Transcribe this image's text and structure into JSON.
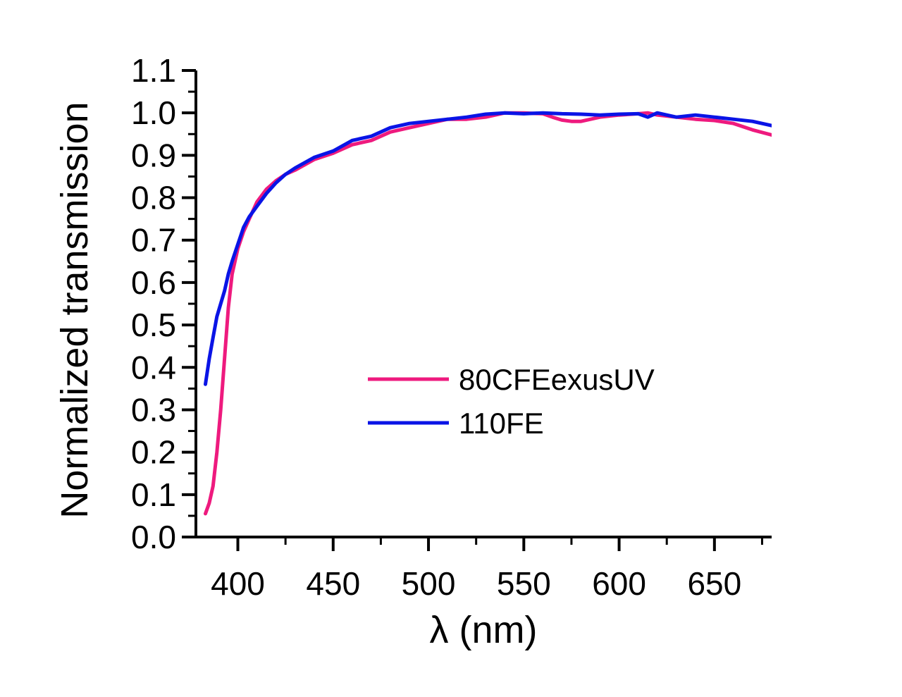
{
  "chart_data": {
    "type": "line",
    "title": "",
    "xlabel": "λ (nm)",
    "ylabel": "Normalized transmission",
    "xlim": [
      378,
      680
    ],
    "ylim": [
      0.0,
      1.1
    ],
    "x_ticks": [
      400,
      450,
      500,
      550,
      600,
      650
    ],
    "x_tick_labels": [
      "400",
      "450",
      "500",
      "550",
      "600",
      "650"
    ],
    "x_minor_ticks": [
      425,
      475,
      525,
      575,
      625,
      675
    ],
    "y_ticks": [
      0.0,
      0.1,
      0.2,
      0.3,
      0.4,
      0.5,
      0.6,
      0.7,
      0.8,
      0.9,
      1.0,
      1.1
    ],
    "y_tick_labels": [
      "0.0",
      "0.1",
      "0.2",
      "0.3",
      "0.4",
      "0.5",
      "0.6",
      "0.7",
      "0.8",
      "0.9",
      "1.0",
      "1.1"
    ],
    "y_minor_ticks": [
      0.05,
      0.15,
      0.25,
      0.35,
      0.45,
      0.55,
      0.65,
      0.75,
      0.85,
      0.95,
      1.05
    ],
    "grid": false,
    "legend_position": "center-right",
    "series": [
      {
        "name": "80CFEexusUV",
        "color": "#ee1a7e",
        "x": [
          383,
          385,
          387,
          389,
          391,
          393,
          395,
          397,
          400,
          403,
          406,
          410,
          415,
          420,
          425,
          430,
          440,
          450,
          460,
          470,
          480,
          490,
          500,
          510,
          520,
          530,
          540,
          550,
          560,
          565,
          570,
          575,
          580,
          585,
          590,
          600,
          610,
          615,
          620,
          630,
          640,
          650,
          660,
          670,
          680
        ],
        "y": [
          0.055,
          0.08,
          0.12,
          0.2,
          0.3,
          0.42,
          0.54,
          0.62,
          0.68,
          0.72,
          0.75,
          0.79,
          0.82,
          0.84,
          0.855,
          0.865,
          0.89,
          0.905,
          0.925,
          0.935,
          0.955,
          0.965,
          0.975,
          0.985,
          0.985,
          0.99,
          1.0,
          1.0,
          0.998,
          0.99,
          0.983,
          0.98,
          0.98,
          0.985,
          0.99,
          0.995,
          0.998,
          1.0,
          0.995,
          0.99,
          0.985,
          0.982,
          0.975,
          0.96,
          0.948
        ]
      },
      {
        "name": "110FE",
        "color": "#0a14e6",
        "x": [
          383,
          385,
          387,
          389,
          391,
          393,
          395,
          397,
          400,
          403,
          406,
          410,
          415,
          420,
          425,
          430,
          440,
          450,
          460,
          470,
          480,
          490,
          500,
          510,
          520,
          530,
          540,
          550,
          560,
          570,
          580,
          590,
          600,
          610,
          615,
          620,
          625,
          630,
          640,
          650,
          660,
          670,
          680
        ],
        "y": [
          0.36,
          0.42,
          0.47,
          0.52,
          0.55,
          0.58,
          0.62,
          0.65,
          0.69,
          0.73,
          0.755,
          0.78,
          0.81,
          0.835,
          0.855,
          0.87,
          0.895,
          0.91,
          0.935,
          0.945,
          0.965,
          0.975,
          0.98,
          0.985,
          0.99,
          0.997,
          1.0,
          0.998,
          1.0,
          0.998,
          0.997,
          0.995,
          0.997,
          0.998,
          0.99,
          1.0,
          0.995,
          0.99,
          0.995,
          0.99,
          0.985,
          0.98,
          0.97
        ]
      }
    ]
  }
}
